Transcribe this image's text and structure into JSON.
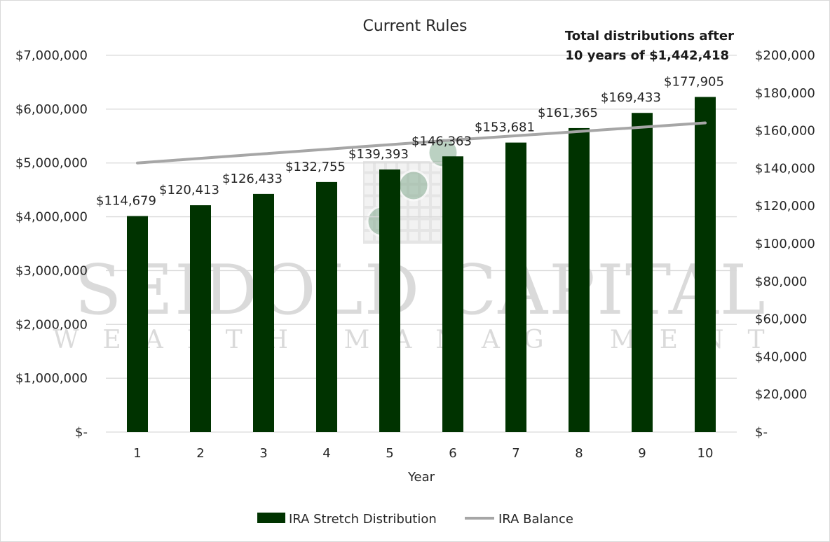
{
  "chart_data": {
    "type": "bar",
    "title": "Current Rules",
    "xlabel": "Year",
    "ylabel": "",
    "y2label": "",
    "categories": [
      "1",
      "2",
      "3",
      "4",
      "5",
      "6",
      "7",
      "8",
      "9",
      "10"
    ],
    "series": [
      {
        "name": "IRA Stretch Distribution",
        "type": "bar",
        "axis": "right",
        "values": [
          114679,
          120413,
          126433,
          132755,
          139393,
          146363,
          153681,
          161365,
          169433,
          177905
        ],
        "labels": [
          "$114,679",
          "$120,413",
          "$126,433",
          "$132,755",
          "$139,393",
          "$146,363",
          "$153,681",
          "$161,365",
          "$169,433",
          "$177,905"
        ],
        "color": "#003300"
      },
      {
        "name": "IRA Balance",
        "type": "line",
        "axis": "left",
        "values": [
          5000000,
          5085000,
          5170000,
          5255000,
          5340000,
          5425000,
          5505000,
          5585000,
          5665000,
          5745000
        ],
        "color": "#a6a6a6"
      }
    ],
    "ylim": [
      0,
      7000000
    ],
    "y2lim": [
      0,
      200000
    ],
    "y_ticks": [
      "$-",
      "$1,000,000",
      "$2,000,000",
      "$3,000,000",
      "$4,000,000",
      "$5,000,000",
      "$6,000,000",
      "$7,000,000"
    ],
    "y2_ticks": [
      "$-",
      "$20,000",
      "$40,000",
      "$60,000",
      "$80,000",
      "$100,000",
      "$120,000",
      "$140,000",
      "$160,000",
      "$180,000",
      "$200,000"
    ],
    "grid": true,
    "legend": "bottom",
    "annotation": [
      "Total distributions after",
      "10 years of $1,442,418"
    ]
  },
  "watermark": {
    "line1": "SEIDOLD CAPITAL",
    "line2": "WEALTH MANAGEMENT"
  },
  "colors": {
    "bar": "#003300",
    "line": "#a6a6a6",
    "grid": "#d9d9d9"
  }
}
